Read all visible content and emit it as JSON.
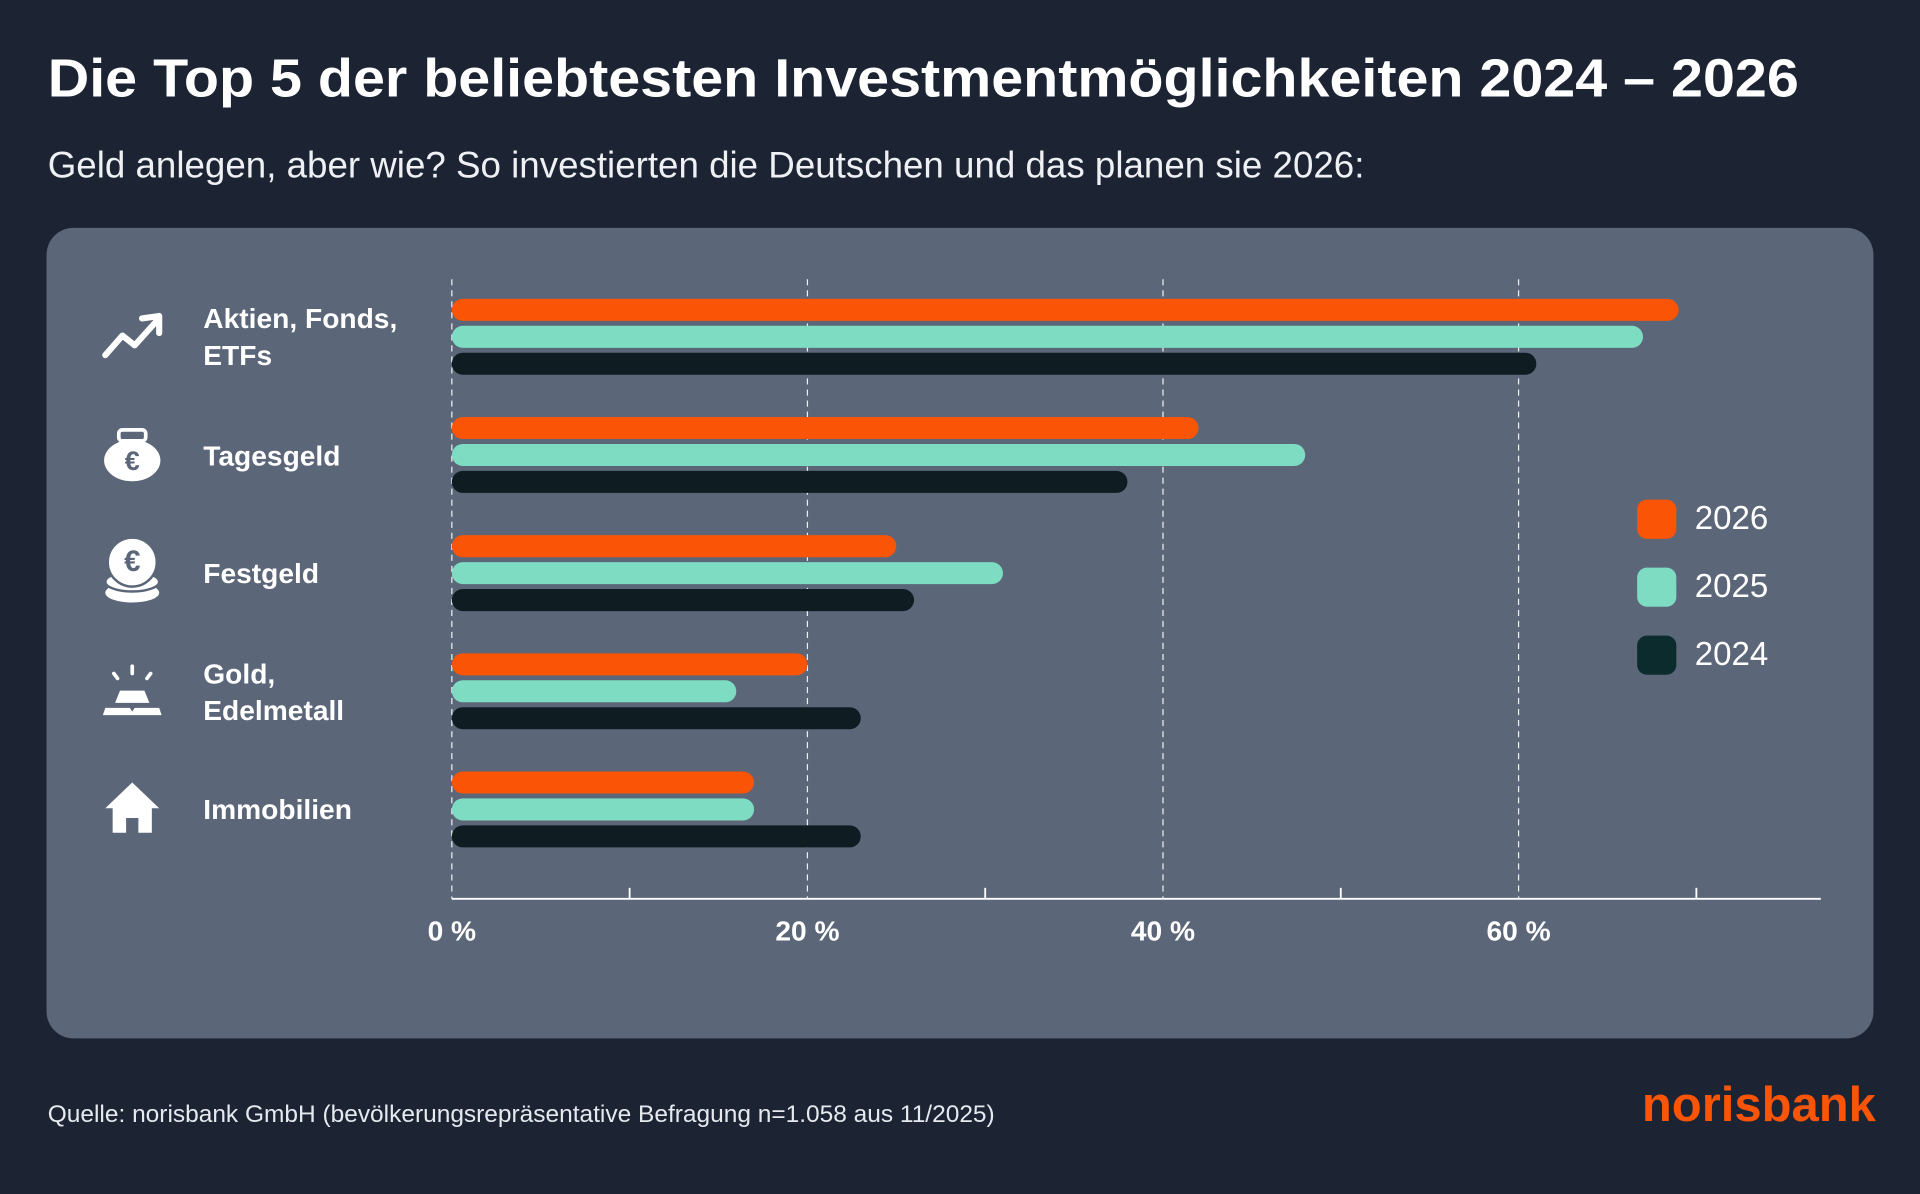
{
  "chart_data": {
    "type": "hbar",
    "title": "Die Top 5 der beliebtesten Investmentmöglichkeiten 2024 – 2026",
    "subtitle": "Geld anlegen, aber wie? So investierten die Deutschen und das planen sie 2026:",
    "categories": [
      "Aktien, Fonds, ETFs",
      "Tagesgeld",
      "Festgeld",
      "Gold, Edelmetall",
      "Immobilien"
    ],
    "series": [
      {
        "name": "2026",
        "color": "#fa5407",
        "values": [
          69,
          42,
          25,
          20,
          17
        ]
      },
      {
        "name": "2025",
        "color": "#7ddcc1",
        "values": [
          67,
          48,
          31,
          16,
          17
        ]
      },
      {
        "name": "2024",
        "color": "#0f1c22",
        "values": [
          61,
          38,
          26,
          23,
          23
        ]
      }
    ],
    "xlim": [
      0,
      77
    ],
    "xticks": [
      {
        "value": 0,
        "label": "0 %"
      },
      {
        "value": 20,
        "label": "20 %"
      },
      {
        "value": 40,
        "label": "40 %"
      },
      {
        "value": 60,
        "label": "60 %"
      }
    ],
    "xminorticks": [
      10,
      30,
      50,
      70
    ],
    "grid": true,
    "legend": "right",
    "source": "Quelle: norisbank GmbH (bevölkerungsrepräsentative Befragung n=1.058 aus 11/2025)",
    "logo": "norisbank"
  }
}
